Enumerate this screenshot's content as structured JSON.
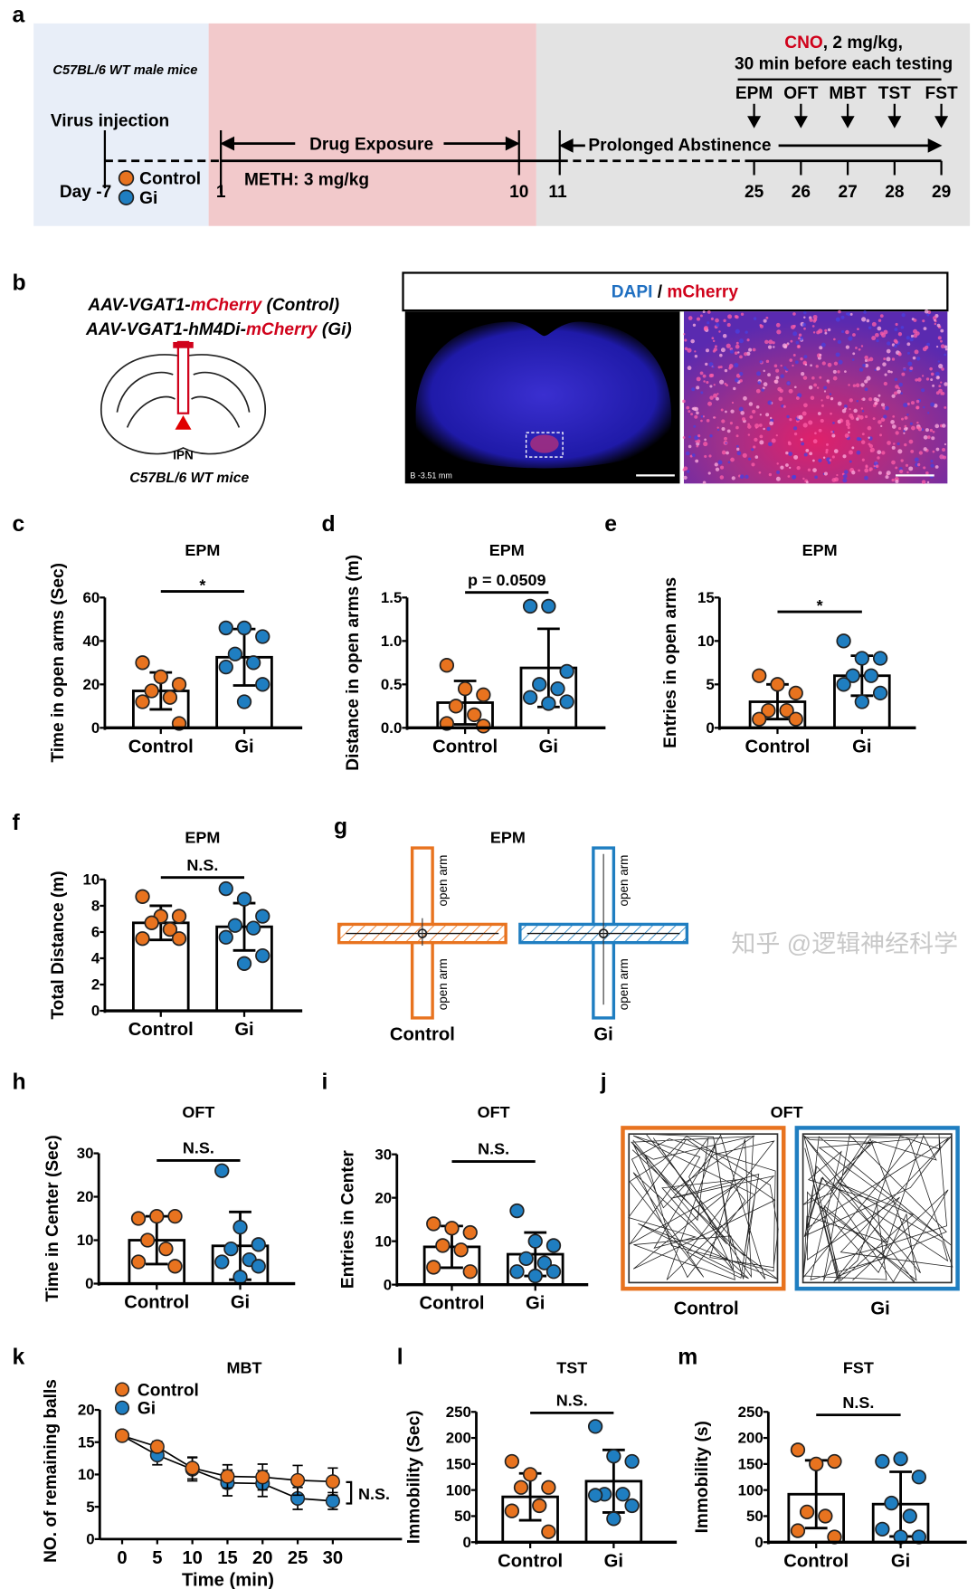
{
  "colors": {
    "control": "#E8731F",
    "gi": "#1F7EC1",
    "cno": "#D0021B",
    "mcherry": "#D0021B",
    "dapi": "#1F6FC1",
    "virus_bg": "#E8EEF8",
    "drug_bg": "#F2C9CB",
    "abst_bg": "#E3E3E3"
  },
  "panel_letters": {
    "a": "a",
    "b": "b",
    "c": "c",
    "d": "d",
    "e": "e",
    "f": "f",
    "g": "g",
    "h": "h",
    "i": "i",
    "j": "j",
    "k": "k",
    "l": "l",
    "m": "m"
  },
  "timeline": {
    "mice": "C57BL/6 WT male mice",
    "virus": "Virus injection",
    "day_label": "Day -7",
    "groups": [
      "Control",
      "Gi"
    ],
    "drug_exposure": "Drug Exposure",
    "meth": "METH: 3 mg/kg",
    "abstinence": "Prolonged Abstinence",
    "cno": "CNO",
    "cno_dose": ", 2 mg/kg,",
    "cno_timing": "30 min before each testing",
    "tests": [
      "EPM",
      "OFT",
      "MBT",
      "TST",
      "FST"
    ],
    "days": [
      "1",
      "10",
      "11",
      "25",
      "26",
      "27",
      "28",
      "29"
    ]
  },
  "histology": {
    "virus_control_prefix": "AAV-VGAT1-",
    "virus_control_red": "mCherry",
    "virus_control_suffix": " (Control)",
    "virus_gi_prefix": "AAV-VGAT1-hM4Di-",
    "virus_gi_red": "mCherry",
    "virus_gi_suffix": " (Gi)",
    "region": "IPN",
    "mice": "C57BL/6 WT mice",
    "stain_dapi": "DAPI",
    "stain_sep": " / ",
    "stain_mcherry": "mCherry",
    "bregma": "B -3.51 mm"
  },
  "epm_tracks": {
    "title": "EPM",
    "arm_label": "open arm",
    "groups": [
      "Control",
      "Gi"
    ]
  },
  "oft_tracks": {
    "title": "OFT",
    "groups": [
      "Control",
      "Gi"
    ]
  },
  "watermark": "知乎 @逻辑神经科学",
  "chart_data": [
    {
      "panel": "c",
      "type": "bar",
      "title": "EPM",
      "ylabel": "Time in open arms (Sec)",
      "categories": [
        "Control",
        "Gi"
      ],
      "ylim": [
        0,
        60
      ],
      "yticks": [
        0,
        20,
        40,
        60
      ],
      "ytick_labels": [
        "0",
        "20",
        "40",
        "60"
      ],
      "significance": "*",
      "series": [
        {
          "mean": 17,
          "sd": 8.5,
          "points": [
            30,
            23.5,
            20,
            17,
            14,
            12,
            2
          ]
        },
        {
          "mean": 32.5,
          "sd": 13,
          "points": [
            46,
            46,
            42,
            34,
            30,
            28,
            20,
            12
          ]
        }
      ]
    },
    {
      "panel": "d",
      "type": "bar",
      "title": "EPM",
      "ylabel": "Distance in open arms (m)",
      "categories": [
        "Control",
        "Gi"
      ],
      "ylim": [
        0,
        1.5
      ],
      "yticks": [
        0,
        0.5,
        1,
        1.5
      ],
      "ytick_labels": [
        "0.0",
        "0.5",
        "1.0",
        "1.5"
      ],
      "significance": "p = 0.0509",
      "series": [
        {
          "mean": 0.29,
          "sd": 0.25,
          "points": [
            0.72,
            0.45,
            0.38,
            0.25,
            0.15,
            0.05,
            0.02
          ]
        },
        {
          "mean": 0.69,
          "sd": 0.45,
          "points": [
            1.4,
            1.4,
            0.65,
            0.5,
            0.45,
            0.35,
            0.3,
            0.28
          ]
        }
      ]
    },
    {
      "panel": "e",
      "type": "bar",
      "title": "EPM",
      "ylabel": "Entries in open arms",
      "categories": [
        "Control",
        "Gi"
      ],
      "ylim": [
        0,
        15
      ],
      "yticks": [
        0,
        5,
        10,
        15
      ],
      "ytick_labels": [
        "0",
        "5",
        "10",
        "15"
      ],
      "significance": "*",
      "series": [
        {
          "mean": 3,
          "sd": 2,
          "points": [
            6,
            5,
            4,
            2,
            2,
            1,
            1
          ]
        },
        {
          "mean": 6,
          "sd": 2.3,
          "points": [
            10,
            8,
            8,
            6,
            6,
            5,
            4,
            3
          ]
        }
      ]
    },
    {
      "panel": "f",
      "type": "bar",
      "title": "EPM",
      "ylabel": "Total Distance (m)",
      "categories": [
        "Control",
        "Gi"
      ],
      "ylim": [
        0,
        10
      ],
      "yticks": [
        0,
        2,
        4,
        6,
        8,
        10
      ],
      "ytick_labels": [
        "0",
        "2",
        "4",
        "6",
        "8",
        "10"
      ],
      "significance": "N.S.",
      "series": [
        {
          "mean": 6.7,
          "sd": 1.3,
          "points": [
            8.7,
            7.2,
            7.2,
            6.7,
            6.2,
            5.5,
            5.5
          ]
        },
        {
          "mean": 6.4,
          "sd": 1.8,
          "points": [
            9.3,
            8.5,
            7.2,
            6.5,
            6.3,
            5.6,
            4.2,
            3.6
          ]
        }
      ]
    },
    {
      "panel": "h",
      "type": "bar",
      "title": "OFT",
      "ylabel": "Time in Center (Sec)",
      "categories": [
        "Control",
        "Gi"
      ],
      "ylim": [
        0,
        30
      ],
      "yticks": [
        0,
        10,
        20,
        30
      ],
      "ytick_labels": [
        "0",
        "10",
        "20",
        "30"
      ],
      "significance": "N.S.",
      "series": [
        {
          "mean": 10,
          "sd": 5.5,
          "points": [
            15,
            15.5,
            15.5,
            10,
            8,
            5,
            4
          ]
        },
        {
          "mean": 8.7,
          "sd": 7.8,
          "points": [
            26,
            13,
            9,
            8,
            5.5,
            5,
            4,
            1.5
          ]
        }
      ]
    },
    {
      "panel": "i",
      "type": "bar",
      "title": "OFT",
      "ylabel": "Entries in Center",
      "categories": [
        "Control",
        "Gi"
      ],
      "ylim": [
        0,
        30
      ],
      "yticks": [
        0,
        10,
        20,
        30
      ],
      "ytick_labels": [
        "0",
        "10",
        "20",
        "30"
      ],
      "significance": "N.S.",
      "series": [
        {
          "mean": 8.7,
          "sd": 4.8,
          "points": [
            14,
            13,
            12,
            9,
            8,
            4,
            3
          ]
        },
        {
          "mean": 7,
          "sd": 5,
          "points": [
            17,
            10,
            9,
            6,
            5,
            3,
            3,
            2
          ]
        }
      ]
    },
    {
      "panel": "l",
      "type": "bar",
      "title": "TST",
      "ylabel": "Immobility (Sec)",
      "categories": [
        "Control",
        "Gi"
      ],
      "ylim": [
        0,
        250
      ],
      "yticks": [
        0,
        50,
        100,
        150,
        200,
        250
      ],
      "ytick_labels": [
        "0",
        "50",
        "100",
        "150",
        "200",
        "250"
      ],
      "significance": "N.S.",
      "series": [
        {
          "mean": 87,
          "sd": 45,
          "points": [
            155,
            130,
            105,
            105,
            70,
            60,
            20
          ]
        },
        {
          "mean": 117,
          "sd": 60,
          "points": [
            222,
            165,
            155,
            92,
            92,
            90,
            70,
            45
          ]
        }
      ]
    },
    {
      "panel": "m",
      "type": "bar",
      "title": "FST",
      "ylabel": "Immobility (s)",
      "categories": [
        "Control",
        "Gi"
      ],
      "ylim": [
        0,
        250
      ],
      "yticks": [
        0,
        50,
        100,
        150,
        200,
        250
      ],
      "ytick_labels": [
        "0",
        "50",
        "100",
        "150",
        "200",
        "250"
      ],
      "significance": "N.S.",
      "series": [
        {
          "mean": 92,
          "sd": 65,
          "points": [
            177,
            150,
            155,
            58,
            50,
            22,
            10
          ]
        },
        {
          "mean": 73,
          "sd": 62,
          "points": [
            155,
            160,
            125,
            75,
            50,
            25,
            10,
            10
          ]
        }
      ]
    },
    {
      "panel": "k",
      "type": "line",
      "title": "MBT",
      "ylabel": "NO. of remaining balls",
      "xlabel": "Time (min)",
      "x": [
        0,
        5,
        10,
        15,
        20,
        25,
        30
      ],
      "ylim": [
        0,
        20
      ],
      "yticks": [
        0,
        5,
        10,
        15,
        20
      ],
      "ytick_labels": [
        "0",
        "5",
        "10",
        "15",
        "20"
      ],
      "xtick_labels": [
        "0",
        "5",
        "10",
        "15",
        "20",
        "25",
        "30"
      ],
      "significance": "N.S.",
      "legend": "top-left",
      "series": [
        {
          "name": "Control",
          "values": [
            16,
            14.3,
            11,
            9.7,
            9.6,
            9.1,
            8.9
          ],
          "sem": [
            0.5,
            0.8,
            1.7,
            1.8,
            2,
            2.3,
            2.1
          ]
        },
        {
          "name": "Gi",
          "values": [
            16,
            13,
            10.8,
            8.7,
            8.6,
            6.3,
            5.9
          ],
          "sem": [
            0.5,
            1.5,
            1.8,
            2,
            2,
            1.7,
            1.3
          ]
        }
      ]
    }
  ]
}
